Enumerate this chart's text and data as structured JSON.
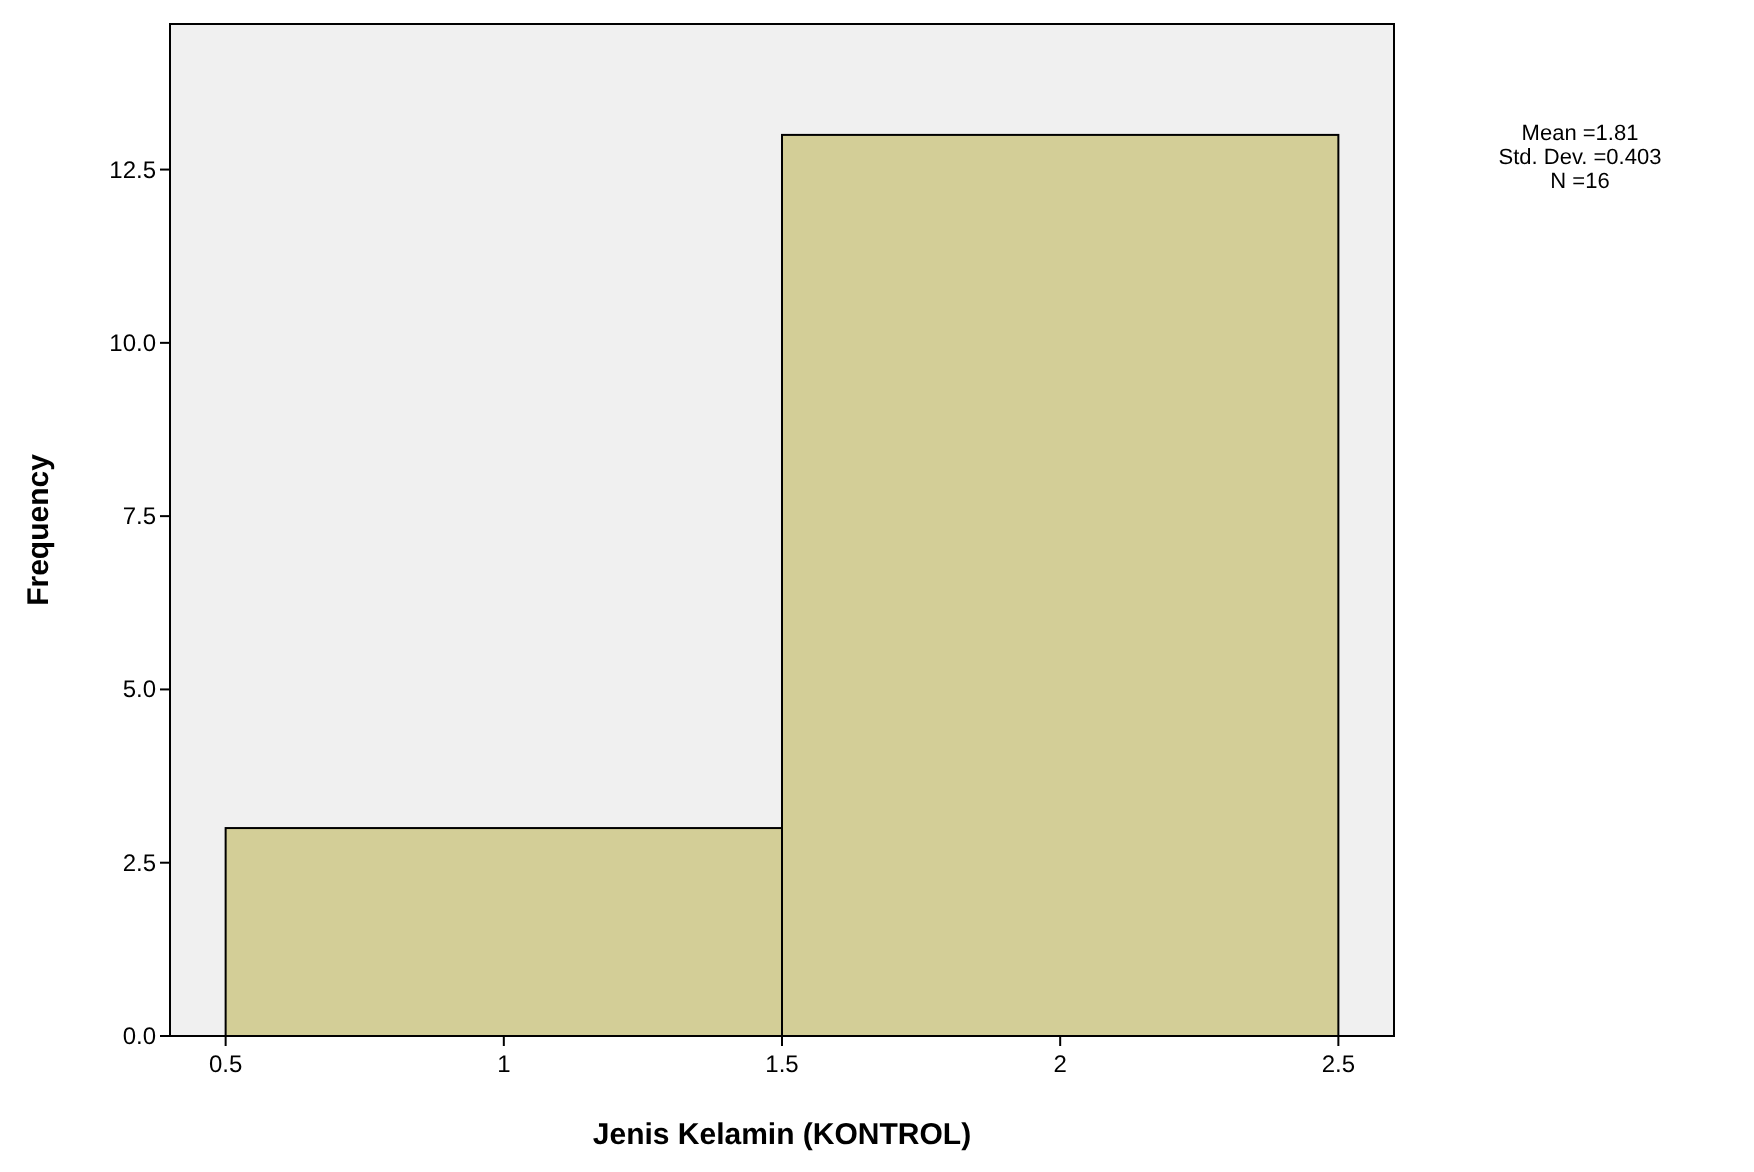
{
  "chart_data": {
    "type": "histogram",
    "xlabel": "Jenis Kelamin (KONTROL)",
    "ylabel": "Frequency",
    "bins": [
      0.5,
      1.5,
      2.5
    ],
    "values": [
      3,
      13
    ],
    "color": "#d3ce97",
    "xlim": [
      0.4,
      2.6
    ],
    "ylim": [
      0,
      14.6
    ],
    "xticks": [
      0.5,
      1,
      1.5,
      2,
      2.5
    ],
    "yticks": [
      {
        "value": 0,
        "label": "0.0"
      },
      {
        "value": 2.5,
        "label": "2.5"
      },
      {
        "value": 5,
        "label": "5.0"
      },
      {
        "value": 7.5,
        "label": "7.5"
      },
      {
        "value": 10,
        "label": "10.0"
      },
      {
        "value": 12.5,
        "label": "12.5"
      }
    ],
    "annotations": [
      "Mean =1.81",
      "Std. Dev. =0.403",
      "N =16"
    ],
    "grid": false
  }
}
